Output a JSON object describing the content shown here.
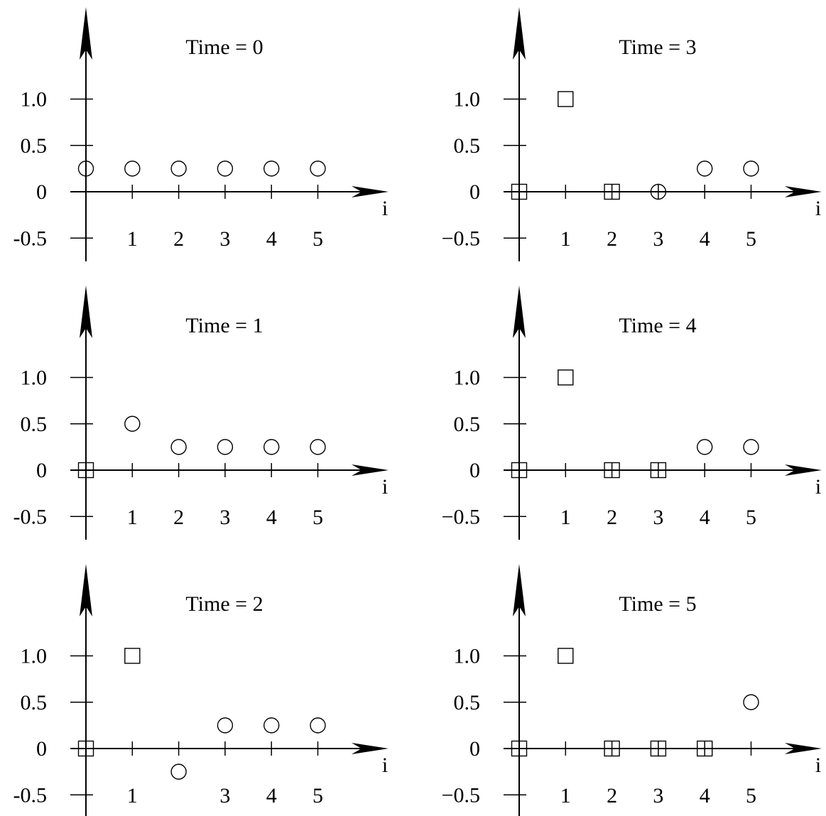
{
  "chart_data": [
    {
      "type": "scatter",
      "title": "Time = 0",
      "xlabel": "i",
      "ylabel": "",
      "x_ticks": [
        "1",
        "2",
        "3",
        "4",
        "5"
      ],
      "y_ticks": [
        "1.0",
        "0.5",
        "0",
        "-0.5"
      ],
      "y_tick_values": [
        1.0,
        0.5,
        0,
        -0.5
      ],
      "xlim": [
        0,
        6
      ],
      "ylim": [
        -0.5,
        1.0
      ],
      "grid": false,
      "points": [
        {
          "x": 0,
          "y": 0.25,
          "marker": "circle"
        },
        {
          "x": 1,
          "y": 0.25,
          "marker": "circle"
        },
        {
          "x": 2,
          "y": 0.25,
          "marker": "circle"
        },
        {
          "x": 3,
          "y": 0.25,
          "marker": "circle"
        },
        {
          "x": 4,
          "y": 0.25,
          "marker": "circle"
        },
        {
          "x": 5,
          "y": 0.25,
          "marker": "circle"
        }
      ]
    },
    {
      "type": "scatter",
      "title": "Time = 1",
      "xlabel": "i",
      "ylabel": "",
      "x_ticks": [
        "1",
        "2",
        "3",
        "4",
        "5"
      ],
      "y_ticks": [
        "1.0",
        "0.5",
        "0",
        "-0.5"
      ],
      "y_tick_values": [
        1.0,
        0.5,
        0,
        -0.5
      ],
      "xlim": [
        0,
        6
      ],
      "ylim": [
        -0.5,
        1.0
      ],
      "grid": false,
      "points": [
        {
          "x": 0,
          "y": 0,
          "marker": "square"
        },
        {
          "x": 1,
          "y": 0.5,
          "marker": "circle"
        },
        {
          "x": 2,
          "y": 0.25,
          "marker": "circle"
        },
        {
          "x": 3,
          "y": 0.25,
          "marker": "circle"
        },
        {
          "x": 4,
          "y": 0.25,
          "marker": "circle"
        },
        {
          "x": 5,
          "y": 0.25,
          "marker": "circle"
        }
      ]
    },
    {
      "type": "scatter",
      "title": "Time = 2",
      "xlabel": "i",
      "ylabel": "",
      "x_ticks": [
        "1",
        "",
        "3",
        "4",
        "5"
      ],
      "y_ticks": [
        "1.0",
        "0.5",
        "0",
        "-0.5"
      ],
      "y_tick_values": [
        1.0,
        0.5,
        0,
        -0.5
      ],
      "xlim": [
        0,
        6
      ],
      "ylim": [
        -0.5,
        1.0
      ],
      "grid": false,
      "points": [
        {
          "x": 0,
          "y": 0,
          "marker": "square"
        },
        {
          "x": 1,
          "y": 1.0,
          "marker": "square"
        },
        {
          "x": 2,
          "y": -0.25,
          "marker": "circle"
        },
        {
          "x": 3,
          "y": 0.25,
          "marker": "circle"
        },
        {
          "x": 4,
          "y": 0.25,
          "marker": "circle"
        },
        {
          "x": 5,
          "y": 0.25,
          "marker": "circle"
        }
      ]
    },
    {
      "type": "scatter",
      "title": "Time = 3",
      "xlabel": "i",
      "ylabel": "",
      "x_ticks": [
        "1",
        "2",
        "3",
        "4",
        "5"
      ],
      "y_ticks": [
        "1.0",
        "0.5",
        "0",
        "−0.5"
      ],
      "y_tick_values": [
        1.0,
        0.5,
        0,
        -0.5
      ],
      "xlim": [
        0,
        6
      ],
      "ylim": [
        -0.5,
        1.0
      ],
      "grid": false,
      "points": [
        {
          "x": 0,
          "y": 0,
          "marker": "square"
        },
        {
          "x": 1,
          "y": 1.0,
          "marker": "square"
        },
        {
          "x": 2,
          "y": 0,
          "marker": "square"
        },
        {
          "x": 3,
          "y": 0,
          "marker": "circle"
        },
        {
          "x": 4,
          "y": 0.25,
          "marker": "circle"
        },
        {
          "x": 5,
          "y": 0.25,
          "marker": "circle"
        }
      ]
    },
    {
      "type": "scatter",
      "title": "Time = 4",
      "xlabel": "i",
      "ylabel": "",
      "x_ticks": [
        "1",
        "2",
        "3",
        "4",
        "5"
      ],
      "y_ticks": [
        "1.0",
        "0.5",
        "0",
        "−0.5"
      ],
      "y_tick_values": [
        1.0,
        0.5,
        0,
        -0.5
      ],
      "xlim": [
        0,
        6
      ],
      "ylim": [
        -0.5,
        1.0
      ],
      "grid": false,
      "points": [
        {
          "x": 0,
          "y": 0,
          "marker": "square"
        },
        {
          "x": 1,
          "y": 1.0,
          "marker": "square"
        },
        {
          "x": 2,
          "y": 0,
          "marker": "square"
        },
        {
          "x": 3,
          "y": 0,
          "marker": "square"
        },
        {
          "x": 4,
          "y": 0.25,
          "marker": "circle"
        },
        {
          "x": 5,
          "y": 0.25,
          "marker": "circle"
        }
      ]
    },
    {
      "type": "scatter",
      "title": "Time = 5",
      "xlabel": "i",
      "ylabel": "",
      "x_ticks": [
        "1",
        "2",
        "3",
        "4",
        "5"
      ],
      "y_ticks": [
        "1.0",
        "0.5",
        "0",
        "−0.5"
      ],
      "y_tick_values": [
        1.0,
        0.5,
        0,
        -0.5
      ],
      "xlim": [
        0,
        6
      ],
      "ylim": [
        -0.5,
        1.0
      ],
      "grid": false,
      "points": [
        {
          "x": 0,
          "y": 0,
          "marker": "square"
        },
        {
          "x": 1,
          "y": 1.0,
          "marker": "square"
        },
        {
          "x": 2,
          "y": 0,
          "marker": "square"
        },
        {
          "x": 3,
          "y": 0,
          "marker": "square"
        },
        {
          "x": 4,
          "y": 0,
          "marker": "square"
        },
        {
          "x": 5,
          "y": 0.5,
          "marker": "circle"
        }
      ]
    }
  ]
}
